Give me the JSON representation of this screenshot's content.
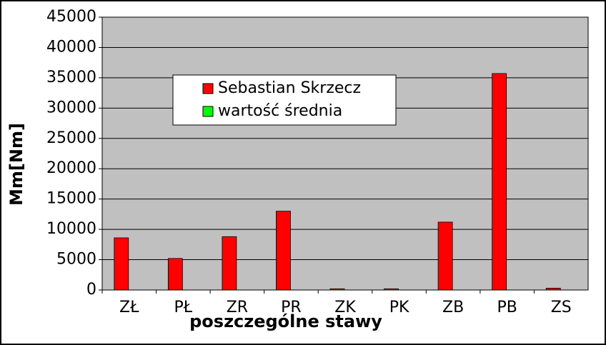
{
  "chart_data": {
    "type": "bar",
    "categories": [
      "ZŁ",
      "PŁ",
      "ZR",
      "PR",
      "ZK",
      "PK",
      "ZB",
      "PB",
      "ZS"
    ],
    "series": [
      {
        "name": "Sebastian Skrzecz",
        "color": "#ff0000",
        "values": [
          8600,
          5200,
          8800,
          13000,
          200,
          200,
          11200,
          35700,
          300
        ]
      },
      {
        "name": "wartość średnia",
        "color": "#00ff00",
        "values": [
          0,
          0,
          0,
          0,
          0,
          0,
          0,
          0,
          0
        ]
      }
    ],
    "ylabel": "Mm[Nm]",
    "xlabel": "poszczególne stawy",
    "ylim": [
      0,
      45000
    ],
    "yticks": [
      0,
      5000,
      10000,
      15000,
      20000,
      25000,
      30000,
      35000,
      40000,
      45000
    ],
    "grid": true,
    "legend": "top-left"
  }
}
